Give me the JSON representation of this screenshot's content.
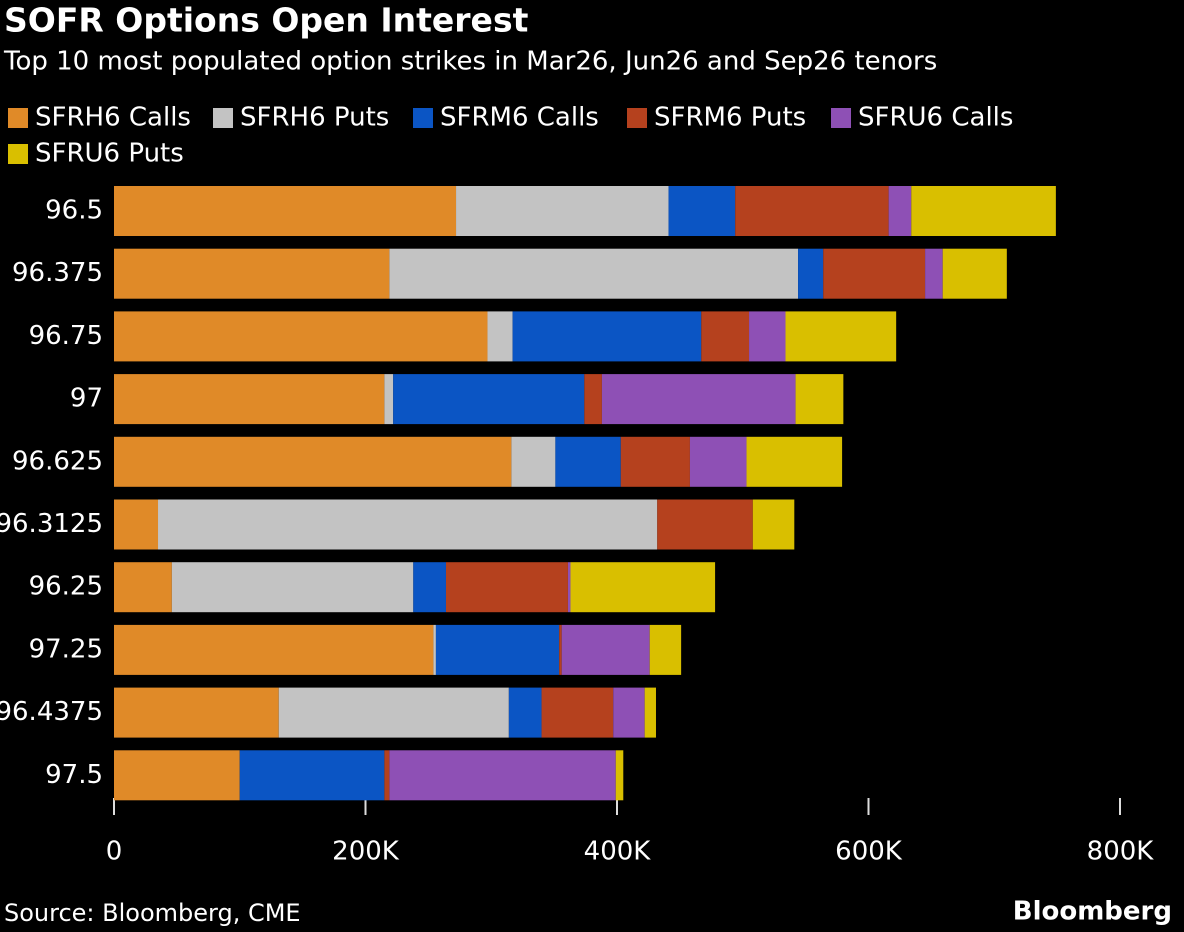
{
  "chart_data": {
    "type": "stacked-bar-horizontal",
    "title": "SOFR Options Open Interest",
    "subtitle": "Top 10 most populated option strikes in Mar26, Jun26 and Sep26 tenors",
    "source": "Source: Bloomberg, CME",
    "brand": "Bloomberg",
    "categories": [
      "96.5",
      "96.375",
      "96.75",
      "97",
      "96.625",
      "96.3125",
      "96.25",
      "97.25",
      "96.4375",
      "97.5"
    ],
    "series": [
      {
        "name": "SFRH6 Calls",
        "color": "#e08a28",
        "values": [
          272000,
          219000,
          297000,
          215000,
          316000,
          35000,
          46000,
          254000,
          131000,
          100000
        ]
      },
      {
        "name": "SFRH6 Puts",
        "color": "#c3c3c3",
        "values": [
          169000,
          325000,
          20000,
          7000,
          35000,
          397000,
          192000,
          2000,
          183000,
          0
        ]
      },
      {
        "name": "SFRM6 Calls",
        "color": "#0b55c4",
        "values": [
          53000,
          20000,
          150000,
          152000,
          52000,
          0,
          26000,
          98000,
          26000,
          115000
        ]
      },
      {
        "name": "SFRM6 Puts",
        "color": "#b5411e",
        "values": [
          122000,
          81000,
          38000,
          14000,
          55000,
          76000,
          97000,
          2000,
          57000,
          4000
        ]
      },
      {
        "name": "SFRU6 Calls",
        "color": "#8e50b5",
        "values": [
          18000,
          14000,
          29000,
          154000,
          45000,
          0,
          2000,
          70000,
          25000,
          180000
        ]
      },
      {
        "name": "SFRU6 Puts",
        "color": "#d9bf00",
        "values": [
          115000,
          51000,
          88000,
          38000,
          76000,
          33000,
          115000,
          25000,
          9000,
          6000
        ]
      }
    ],
    "xlim": [
      0,
      800000
    ],
    "xticks": [
      0,
      {
        "value": 200000,
        "label": "200K"
      },
      {
        "value": 400000,
        "label": "400K"
      },
      {
        "value": 600000,
        "label": "600K"
      },
      {
        "value": 800000,
        "label": "800K"
      }
    ]
  }
}
